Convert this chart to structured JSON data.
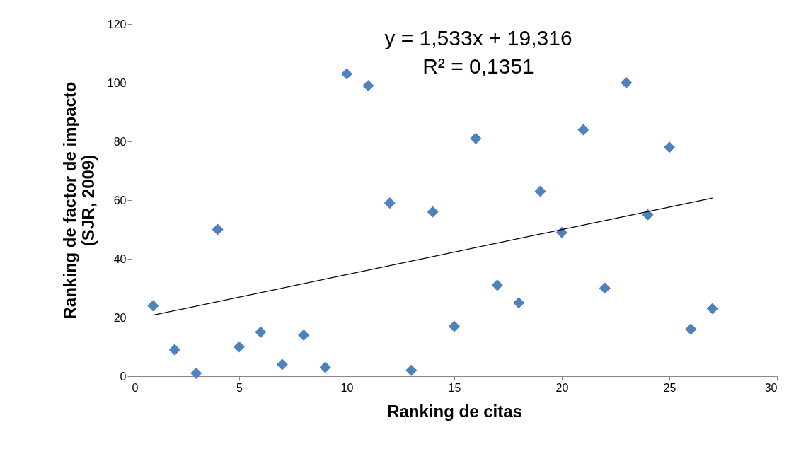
{
  "chart_data": {
    "type": "scatter",
    "xlabel": "Ranking de citas",
    "ylabel": "Ranking de factor de impacto\n(SJR, 2009)",
    "xlim": [
      0,
      30
    ],
    "xticks": [
      0,
      5,
      10,
      15,
      20,
      25,
      30
    ],
    "ylim": [
      0,
      120
    ],
    "yticks": [
      0,
      20,
      40,
      60,
      80,
      100,
      120
    ],
    "grid": false,
    "marker": "diamond",
    "annotations": [
      "y = 1,533x + 19,316",
      "R² = 0,1351"
    ],
    "series": [
      {
        "color": "#4f81bd",
        "x": [
          1,
          2,
          3,
          4,
          5,
          6,
          7,
          8,
          9,
          10,
          11,
          12,
          13,
          14,
          15,
          16,
          17,
          18,
          19,
          20,
          21,
          22,
          23,
          24,
          25,
          26,
          27
        ],
        "values": [
          24,
          9,
          1,
          50,
          10,
          15,
          4,
          14,
          3,
          103,
          99,
          59,
          2,
          56,
          17,
          81,
          31,
          25,
          63,
          49,
          84,
          30,
          100,
          55,
          78,
          16,
          23
        ]
      },
      {
        "type": "line",
        "marker": "none",
        "color": "#000000",
        "x": [
          1,
          27
        ],
        "values": [
          20.8,
          60.7
        ]
      }
    ]
  }
}
